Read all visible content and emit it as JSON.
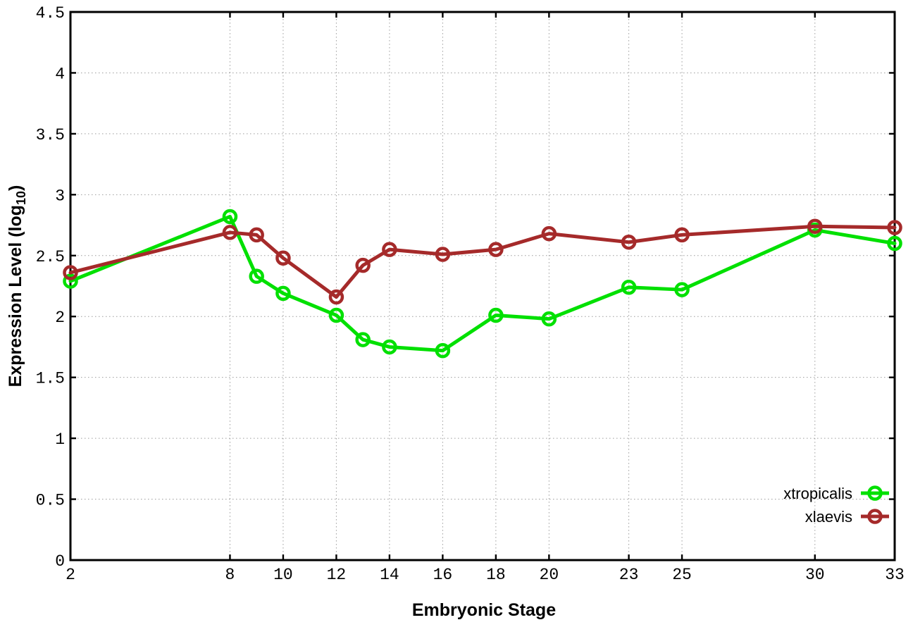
{
  "figure": {
    "background": "#ffffff",
    "border_color": "#000000",
    "grid_color": "#9c9c9c",
    "text_color": "#000000"
  },
  "chart_data": {
    "type": "line",
    "title": "",
    "xlabel": "Embryonic Stage",
    "ylabel": "Expression Level (log10)",
    "ylabel_parts": {
      "base": "Expression Level (log",
      "sub": "10",
      "close": ")"
    },
    "xlim": [
      2,
      33
    ],
    "ylim": [
      0,
      4.5
    ],
    "x_ticks": [
      2,
      8,
      10,
      12,
      14,
      16,
      18,
      20,
      23,
      25,
      30,
      33
    ],
    "x_tick_labels": [
      "2",
      "8",
      "10",
      "12",
      "14",
      "16",
      "18",
      "20",
      "23",
      "25",
      "30",
      "33"
    ],
    "y_ticks": [
      0,
      0.5,
      1,
      1.5,
      2,
      2.5,
      3,
      3.5,
      4,
      4.5
    ],
    "y_tick_labels": [
      "0",
      "0.5",
      "1",
      "1.5",
      "2",
      "2.5",
      "3",
      "3.5",
      "4",
      "4.5"
    ],
    "grid": true,
    "grid_style": "dotted",
    "legend_position": "bottom-right",
    "marker": "open-circle",
    "x": [
      2,
      8,
      9,
      10,
      12,
      13,
      14,
      16,
      18,
      20,
      23,
      25,
      30,
      33
    ],
    "series": [
      {
        "name": "xtropicalis",
        "color": "#00e000",
        "values": [
          2.29,
          2.82,
          2.33,
          2.19,
          2.01,
          1.81,
          1.75,
          1.72,
          2.01,
          1.98,
          2.24,
          2.22,
          2.71,
          2.6
        ]
      },
      {
        "name": "xlaevis",
        "color": "#a52a2a",
        "values": [
          2.36,
          2.69,
          2.67,
          2.48,
          2.16,
          2.42,
          2.55,
          2.51,
          2.55,
          2.68,
          2.61,
          2.67,
          2.74,
          2.73
        ]
      }
    ]
  }
}
